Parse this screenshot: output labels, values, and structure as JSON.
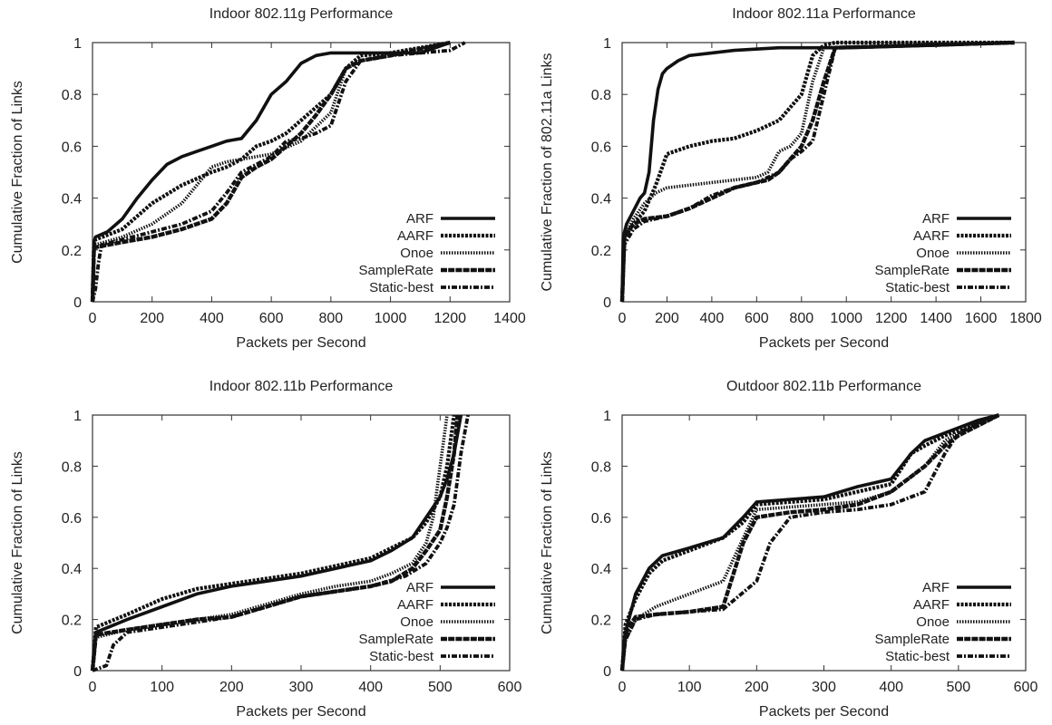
{
  "chart_data": [
    {
      "type": "line",
      "title": "Indoor 802.11g Performance",
      "xlabel": "Packets per Second",
      "ylabel": "Cumulative Fraction of Links",
      "xlim": [
        0,
        1400
      ],
      "ylim": [
        0,
        1
      ],
      "xticks": [
        "0",
        "200",
        "400",
        "600",
        "800",
        "1000",
        "1200",
        "1400"
      ],
      "yticks": [
        "0",
        "0.2",
        "0.4",
        "0.6",
        "0.8",
        "1"
      ],
      "legend": "bottom-right",
      "grid": false,
      "series": [
        {
          "name": "ARF",
          "x": [
            0,
            5,
            10,
            50,
            100,
            150,
            200,
            250,
            300,
            350,
            400,
            450,
            500,
            550,
            600,
            650,
            700,
            750,
            800,
            900,
            1000,
            1100,
            1200
          ],
          "y": [
            0,
            0.23,
            0.25,
            0.27,
            0.32,
            0.4,
            0.47,
            0.53,
            0.56,
            0.58,
            0.6,
            0.62,
            0.63,
            0.7,
            0.8,
            0.85,
            0.92,
            0.95,
            0.96,
            0.96,
            0.96,
            0.96,
            1.0
          ]
        },
        {
          "name": "AARF",
          "x": [
            0,
            5,
            10,
            100,
            200,
            300,
            400,
            450,
            500,
            550,
            600,
            650,
            700,
            750,
            800,
            850,
            900,
            1000,
            1200
          ],
          "y": [
            0,
            0.22,
            0.24,
            0.28,
            0.38,
            0.45,
            0.5,
            0.52,
            0.55,
            0.6,
            0.62,
            0.65,
            0.7,
            0.75,
            0.8,
            0.9,
            0.95,
            0.96,
            1.0
          ]
        },
        {
          "name": "Onoe",
          "x": [
            0,
            5,
            10,
            100,
            200,
            300,
            350,
            400,
            450,
            500,
            600,
            700,
            800,
            850,
            900,
            1000,
            1100
          ],
          "y": [
            0,
            0.21,
            0.22,
            0.25,
            0.3,
            0.38,
            0.45,
            0.52,
            0.54,
            0.55,
            0.57,
            0.62,
            0.73,
            0.9,
            0.93,
            0.95,
            0.98
          ]
        },
        {
          "name": "SampleRate",
          "x": [
            0,
            5,
            10,
            100,
            200,
            300,
            400,
            450,
            500,
            550,
            600,
            650,
            700,
            750,
            800,
            850,
            900,
            1000,
            1200
          ],
          "y": [
            0,
            0.2,
            0.21,
            0.23,
            0.25,
            0.28,
            0.32,
            0.38,
            0.48,
            0.52,
            0.55,
            0.6,
            0.65,
            0.72,
            0.8,
            0.9,
            0.93,
            0.95,
            1.0
          ]
        },
        {
          "name": "Static-best",
          "x": [
            0,
            10,
            20,
            30,
            100,
            200,
            300,
            400,
            450,
            500,
            550,
            600,
            650,
            700,
            750,
            800,
            850,
            900,
            1000,
            1100,
            1200,
            1250
          ],
          "y": [
            0,
            0.05,
            0.15,
            0.22,
            0.24,
            0.27,
            0.3,
            0.35,
            0.42,
            0.5,
            0.53,
            0.56,
            0.62,
            0.63,
            0.65,
            0.68,
            0.85,
            0.93,
            0.95,
            0.96,
            0.97,
            1.0
          ]
        }
      ]
    },
    {
      "type": "line",
      "title": "Indoor 802.11a Performance",
      "xlabel": "Packets per Second",
      "ylabel": "Cumulative Fraction of 802.11a Links",
      "xlim": [
        0,
        1800
      ],
      "ylim": [
        0,
        1
      ],
      "xticks": [
        "0",
        "200",
        "400",
        "600",
        "800",
        "1000",
        "1200",
        "1400",
        "1600",
        "1800"
      ],
      "yticks": [
        "0",
        "0.2",
        "0.4",
        "0.6",
        "0.8",
        "1"
      ],
      "legend": "bottom-right",
      "grid": false,
      "series": [
        {
          "name": "ARF",
          "x": [
            0,
            5,
            20,
            50,
            80,
            100,
            120,
            140,
            160,
            180,
            200,
            250,
            300,
            400,
            500,
            700,
            1000,
            1400,
            1750
          ],
          "y": [
            0,
            0.25,
            0.3,
            0.35,
            0.4,
            0.42,
            0.5,
            0.7,
            0.82,
            0.88,
            0.9,
            0.93,
            0.95,
            0.96,
            0.97,
            0.98,
            0.98,
            0.99,
            1.0
          ]
        },
        {
          "name": "AARF",
          "x": [
            0,
            10,
            50,
            100,
            150,
            200,
            300,
            400,
            500,
            600,
            700,
            800,
            850,
            900,
            950,
            1750
          ],
          "y": [
            0,
            0.25,
            0.3,
            0.35,
            0.45,
            0.57,
            0.6,
            0.62,
            0.63,
            0.66,
            0.7,
            0.8,
            0.95,
            0.99,
            1.0,
            1.0
          ]
        },
        {
          "name": "Onoe",
          "x": [
            0,
            10,
            50,
            100,
            150,
            200,
            300,
            400,
            500,
            600,
            650,
            700,
            750,
            800,
            850,
            900,
            1750
          ],
          "y": [
            0,
            0.25,
            0.32,
            0.38,
            0.42,
            0.44,
            0.45,
            0.46,
            0.47,
            0.48,
            0.5,
            0.58,
            0.6,
            0.65,
            0.85,
            0.98,
            1.0
          ]
        },
        {
          "name": "SampleRate",
          "x": [
            0,
            10,
            50,
            100,
            200,
            300,
            400,
            500,
            600,
            650,
            700,
            750,
            800,
            850,
            900,
            950,
            1750
          ],
          "y": [
            0,
            0.25,
            0.3,
            0.32,
            0.33,
            0.36,
            0.4,
            0.44,
            0.46,
            0.47,
            0.5,
            0.55,
            0.6,
            0.7,
            0.85,
            0.98,
            1.0
          ]
        },
        {
          "name": "Static-best",
          "x": [
            0,
            10,
            50,
            100,
            200,
            300,
            400,
            500,
            600,
            700,
            750,
            800,
            850,
            900,
            950,
            1750
          ],
          "y": [
            0,
            0.22,
            0.28,
            0.31,
            0.33,
            0.36,
            0.41,
            0.44,
            0.46,
            0.5,
            0.55,
            0.58,
            0.62,
            0.8,
            0.98,
            1.0
          ]
        }
      ]
    },
    {
      "type": "line",
      "title": "Indoor 802.11b Performance",
      "xlabel": "Packets per Second",
      "ylabel": "Cumulative Fraction of Links",
      "xlim": [
        0,
        600
      ],
      "ylim": [
        0,
        1
      ],
      "xticks": [
        "0",
        "100",
        "200",
        "300",
        "400",
        "500",
        "600"
      ],
      "yticks": [
        "0",
        "0.2",
        "0.4",
        "0.6",
        "0.8",
        "1"
      ],
      "legend": "bottom-right",
      "grid": false,
      "series": [
        {
          "name": "ARF",
          "x": [
            0,
            5,
            50,
            100,
            150,
            200,
            250,
            300,
            350,
            400,
            430,
            460,
            480,
            500,
            510,
            520,
            530
          ],
          "y": [
            0,
            0.15,
            0.2,
            0.25,
            0.3,
            0.33,
            0.35,
            0.37,
            0.4,
            0.43,
            0.47,
            0.52,
            0.6,
            0.68,
            0.75,
            0.85,
            1.0
          ]
        },
        {
          "name": "AARF",
          "x": [
            0,
            5,
            50,
            100,
            150,
            200,
            250,
            300,
            350,
            400,
            430,
            460,
            480,
            500,
            510,
            520
          ],
          "y": [
            0,
            0.17,
            0.22,
            0.28,
            0.32,
            0.34,
            0.36,
            0.38,
            0.41,
            0.44,
            0.48,
            0.52,
            0.58,
            0.68,
            0.8,
            1.0
          ]
        },
        {
          "name": "Onoe",
          "x": [
            0,
            5,
            50,
            100,
            150,
            200,
            250,
            300,
            350,
            400,
            430,
            460,
            480,
            490,
            500,
            510
          ],
          "y": [
            0,
            0.13,
            0.16,
            0.18,
            0.2,
            0.22,
            0.26,
            0.3,
            0.33,
            0.35,
            0.38,
            0.42,
            0.5,
            0.6,
            0.8,
            1.0
          ]
        },
        {
          "name": "SampleRate",
          "x": [
            0,
            5,
            50,
            100,
            150,
            200,
            250,
            300,
            350,
            400,
            430,
            460,
            480,
            500,
            510,
            520,
            525
          ],
          "y": [
            0,
            0.14,
            0.16,
            0.18,
            0.2,
            0.21,
            0.25,
            0.29,
            0.31,
            0.33,
            0.35,
            0.4,
            0.47,
            0.55,
            0.68,
            0.85,
            1.0
          ]
        },
        {
          "name": "Static-best",
          "x": [
            0,
            20,
            30,
            50,
            100,
            150,
            200,
            250,
            300,
            350,
            400,
            450,
            480,
            500,
            510,
            520,
            530,
            540
          ],
          "y": [
            0,
            0.02,
            0.1,
            0.15,
            0.17,
            0.19,
            0.21,
            0.25,
            0.29,
            0.31,
            0.33,
            0.37,
            0.42,
            0.5,
            0.56,
            0.65,
            0.85,
            1.0
          ]
        }
      ]
    },
    {
      "type": "line",
      "title": "Outdoor 802.11b Performance",
      "xlabel": "Packets per Second",
      "ylabel": "Cumulative Fraction of Links",
      "xlim": [
        0,
        600
      ],
      "ylim": [
        0,
        1
      ],
      "xticks": [
        "0",
        "100",
        "200",
        "300",
        "400",
        "500",
        "600"
      ],
      "yticks": [
        "0",
        "0.2",
        "0.4",
        "0.6",
        "0.8",
        "1"
      ],
      "legend": "bottom-right",
      "grid": false,
      "series": [
        {
          "name": "ARF",
          "x": [
            0,
            5,
            20,
            40,
            60,
            100,
            150,
            180,
            200,
            250,
            300,
            350,
            400,
            430,
            450,
            480,
            500,
            530,
            560
          ],
          "y": [
            0,
            0.15,
            0.3,
            0.4,
            0.45,
            0.48,
            0.52,
            0.6,
            0.66,
            0.67,
            0.68,
            0.72,
            0.75,
            0.85,
            0.9,
            0.93,
            0.95,
            0.98,
            1.0
          ]
        },
        {
          "name": "AARF",
          "x": [
            0,
            5,
            20,
            40,
            60,
            100,
            150,
            180,
            200,
            250,
            300,
            350,
            400,
            430,
            450,
            480,
            500,
            530,
            560
          ],
          "y": [
            0,
            0.18,
            0.28,
            0.38,
            0.43,
            0.47,
            0.52,
            0.58,
            0.65,
            0.66,
            0.67,
            0.7,
            0.73,
            0.85,
            0.88,
            0.92,
            0.94,
            0.97,
            1.0
          ]
        },
        {
          "name": "Onoe",
          "x": [
            0,
            5,
            20,
            50,
            100,
            150,
            200,
            250,
            300,
            350,
            400,
            450,
            480,
            500,
            530,
            560
          ],
          "y": [
            0,
            0.12,
            0.2,
            0.25,
            0.3,
            0.35,
            0.63,
            0.64,
            0.65,
            0.66,
            0.7,
            0.8,
            0.9,
            0.93,
            0.96,
            1.0
          ]
        },
        {
          "name": "SampleRate",
          "x": [
            0,
            5,
            20,
            50,
            100,
            150,
            180,
            200,
            250,
            300,
            350,
            400,
            450,
            480,
            500,
            530,
            560
          ],
          "y": [
            0,
            0.15,
            0.21,
            0.22,
            0.23,
            0.25,
            0.5,
            0.6,
            0.62,
            0.63,
            0.65,
            0.7,
            0.8,
            0.88,
            0.92,
            0.96,
            1.0
          ]
        },
        {
          "name": "Static-best",
          "x": [
            0,
            5,
            20,
            50,
            100,
            150,
            200,
            220,
            250,
            300,
            350,
            400,
            450,
            480,
            500,
            530,
            560
          ],
          "y": [
            0,
            0.12,
            0.2,
            0.22,
            0.23,
            0.24,
            0.35,
            0.5,
            0.6,
            0.62,
            0.63,
            0.65,
            0.7,
            0.85,
            0.93,
            0.97,
            1.0
          ]
        }
      ]
    }
  ]
}
